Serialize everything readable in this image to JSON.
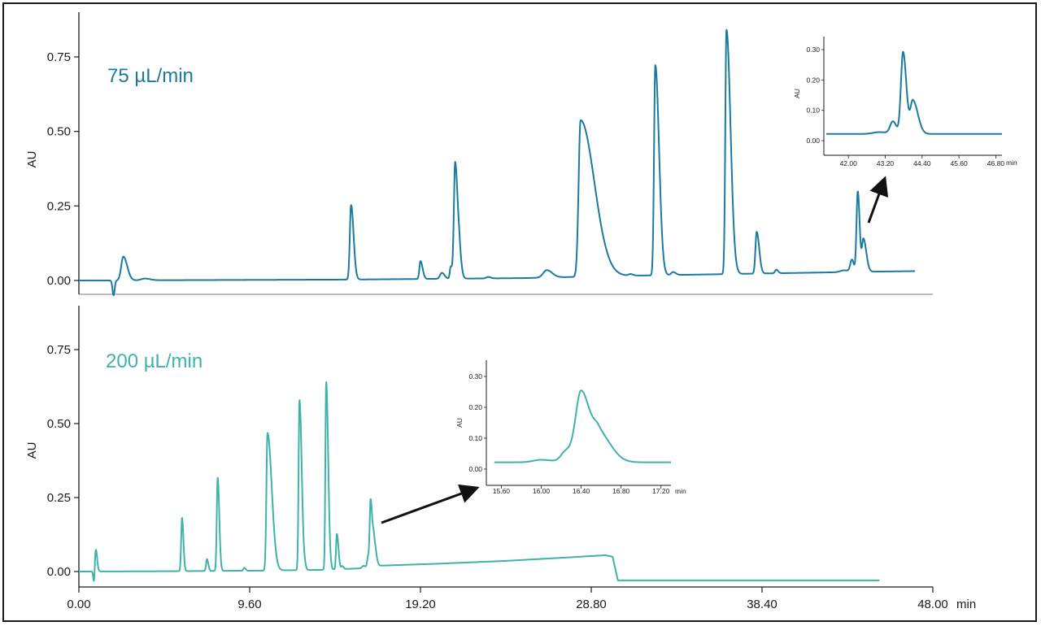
{
  "colors": {
    "top": "#1a7aa0",
    "bottom": "#3fb3a8",
    "axis": "#1a1a1a",
    "arrow": "#111111"
  },
  "chart_data": [
    {
      "id": "top",
      "type": "line",
      "title": "75 µL/min",
      "ylabel": "AU",
      "xlim": [
        0,
        48
      ],
      "ylim": [
        -0.05,
        0.9
      ],
      "y_ticks": [
        {
          "v": 0,
          "label": "0.00"
        },
        {
          "v": 0.25,
          "label": "0.25"
        },
        {
          "v": 0.5,
          "label": "0.50"
        },
        {
          "v": 0.75,
          "label": "0.75"
        }
      ],
      "series": [
        {
          "baseline": [
            [
              0,
              0
            ],
            [
              2,
              0
            ],
            [
              5,
              0.001
            ],
            [
              15,
              0.003
            ],
            [
              25,
              0.008
            ],
            [
              30,
              0.015
            ],
            [
              35,
              0.02
            ],
            [
              40,
              0.025
            ],
            [
              45,
              0.03
            ],
            [
              48,
              0.032
            ]
          ],
          "peaks": [
            {
              "rt": 1.95,
              "height": -0.05,
              "width": 0.06,
              "tail": 1
            },
            {
              "rt": 2.5,
              "height": 0.08,
              "width": 0.12,
              "tail": 1.8
            },
            {
              "rt": 3.7,
              "height": 0.006,
              "width": 0.2,
              "tail": 1.5
            },
            {
              "rt": 15.3,
              "height": 0.25,
              "width": 0.07,
              "tail": 2
            },
            {
              "rt": 19.2,
              "height": 0.06,
              "width": 0.06,
              "tail": 2
            },
            {
              "rt": 20.4,
              "height": 0.02,
              "width": 0.1,
              "tail": 1.5
            },
            {
              "rt": 20.9,
              "height": 0.04,
              "width": 0.05,
              "tail": 2
            },
            {
              "rt": 21.15,
              "height": 0.39,
              "width": 0.07,
              "tail": 2.2
            },
            {
              "rt": 21.4,
              "height": 0.04,
              "width": 0.06,
              "tail": 2
            },
            {
              "rt": 23.0,
              "height": 0.005,
              "width": 0.1,
              "tail": 1.5
            },
            {
              "rt": 26.3,
              "height": 0.025,
              "width": 0.2,
              "tail": 1.5
            },
            {
              "rt": 28.2,
              "height": 0.525,
              "width": 0.11,
              "tail": 7
            },
            {
              "rt": 31.0,
              "height": 0.005,
              "width": 0.1,
              "tail": 1.5
            },
            {
              "rt": 32.4,
              "height": 0.705,
              "width": 0.07,
              "tail": 3
            },
            {
              "rt": 33.4,
              "height": 0.01,
              "width": 0.1,
              "tail": 1.5
            },
            {
              "rt": 36.4,
              "height": 0.82,
              "width": 0.065,
              "tail": 3.5
            },
            {
              "rt": 38.1,
              "height": 0.14,
              "width": 0.07,
              "tail": 2
            },
            {
              "rt": 39.2,
              "height": 0.012,
              "width": 0.07,
              "tail": 1.5
            },
            {
              "rt": 43.0,
              "height": 0.006,
              "width": 0.2,
              "tail": 1.5
            },
            {
              "rt": 43.45,
              "height": 0.04,
              "width": 0.09,
              "tail": 1.2
            },
            {
              "rt": 43.78,
              "height": 0.27,
              "width": 0.07,
              "tail": 1.5
            },
            {
              "rt": 44.1,
              "height": 0.11,
              "width": 0.08,
              "tail": 2
            }
          ]
        }
      ],
      "x_end": 47.0,
      "inset": {
        "xlabel": "min",
        "ylabel": "AU",
        "xlim": [
          41.2,
          47.0
        ],
        "ylim": [
          -0.05,
          0.34
        ],
        "x_ticks": [
          "42.00",
          "43.20",
          "44.40",
          "45.60",
          "46.80"
        ],
        "x_tick_values": [
          42.0,
          43.2,
          44.4,
          45.6,
          46.8
        ],
        "y_ticks": [
          "0.00",
          "0.10",
          "0.20",
          "0.30"
        ],
        "y_tick_values": [
          0,
          0.1,
          0.2,
          0.3
        ]
      }
    },
    {
      "id": "bottom",
      "type": "line",
      "title": "200 µL/min",
      "ylabel": "AU",
      "xlabel": "min",
      "xlim": [
        0,
        48
      ],
      "ylim": [
        -0.05,
        0.9
      ],
      "x_ticks": [
        {
          "v": 0,
          "label": "0.00"
        },
        {
          "v": 9.6,
          "label": "9.60"
        },
        {
          "v": 19.2,
          "label": "19.20"
        },
        {
          "v": 28.8,
          "label": "28.80"
        },
        {
          "v": 38.4,
          "label": "38.40"
        },
        {
          "v": 48,
          "label": "48.00"
        }
      ],
      "y_ticks": [
        {
          "v": 0,
          "label": "0.00"
        },
        {
          "v": 0.25,
          "label": "0.25"
        },
        {
          "v": 0.5,
          "label": "0.50"
        },
        {
          "v": 0.75,
          "label": "0.75"
        }
      ],
      "series": [
        {
          "baseline": [
            [
              0,
              0
            ],
            [
              5,
              0.001
            ],
            [
              10,
              0.003
            ],
            [
              14,
              0.006
            ],
            [
              16.3,
              0.012
            ],
            [
              17,
              0.02
            ],
            [
              20,
              0.026
            ],
            [
              24,
              0.036
            ],
            [
              27,
              0.046
            ],
            [
              29.6,
              0.055
            ],
            [
              30.0,
              0.05
            ],
            [
              30.3,
              -0.03
            ],
            [
              30.5,
              -0.03
            ],
            [
              31,
              -0.03
            ],
            [
              45,
              -0.03
            ]
          ],
          "peaks": [
            {
              "rt": 0.85,
              "height": -0.04,
              "width": 0.04,
              "tail": 1
            },
            {
              "rt": 0.95,
              "height": 0.075,
              "width": 0.05,
              "tail": 1.5
            },
            {
              "rt": 5.8,
              "height": 0.18,
              "width": 0.05,
              "tail": 1.5
            },
            {
              "rt": 7.2,
              "height": 0.04,
              "width": 0.05,
              "tail": 1.5
            },
            {
              "rt": 7.8,
              "height": 0.315,
              "width": 0.05,
              "tail": 1.8
            },
            {
              "rt": 9.3,
              "height": 0.01,
              "width": 0.05,
              "tail": 1.5
            },
            {
              "rt": 10.6,
              "height": 0.465,
              "width": 0.06,
              "tail": 4
            },
            {
              "rt": 12.4,
              "height": 0.575,
              "width": 0.05,
              "tail": 2.5
            },
            {
              "rt": 12.7,
              "height": 0.01,
              "width": 0.05,
              "tail": 1.5
            },
            {
              "rt": 13.9,
              "height": 0.635,
              "width": 0.045,
              "tail": 2.5
            },
            {
              "rt": 14.5,
              "height": 0.12,
              "width": 0.045,
              "tail": 2
            },
            {
              "rt": 14.8,
              "height": 0.01,
              "width": 0.05,
              "tail": 1.5
            },
            {
              "rt": 16.0,
              "height": 0.008,
              "width": 0.08,
              "tail": 1.5
            },
            {
              "rt": 16.25,
              "height": 0.035,
              "width": 0.05,
              "tail": 1.2
            },
            {
              "rt": 16.4,
              "height": 0.23,
              "width": 0.055,
              "tail": 1.6
            },
            {
              "rt": 16.58,
              "height": 0.09,
              "width": 0.06,
              "tail": 2
            }
          ]
        }
      ],
      "x_end": 45.0,
      "inset": {
        "xlabel": "min",
        "ylabel": "AU",
        "xlim": [
          15.45,
          17.3
        ],
        "ylim": [
          -0.05,
          0.34
        ],
        "x_ticks": [
          "15.60",
          "16.00",
          "16.40",
          "16.80",
          "17.20"
        ],
        "x_tick_values": [
          15.6,
          16.0,
          16.4,
          16.8,
          17.2
        ],
        "y_ticks": [
          "0.00",
          "0.10",
          "0.20",
          "0.30"
        ],
        "y_tick_values": [
          0,
          0.1,
          0.2,
          0.3
        ]
      }
    }
  ]
}
